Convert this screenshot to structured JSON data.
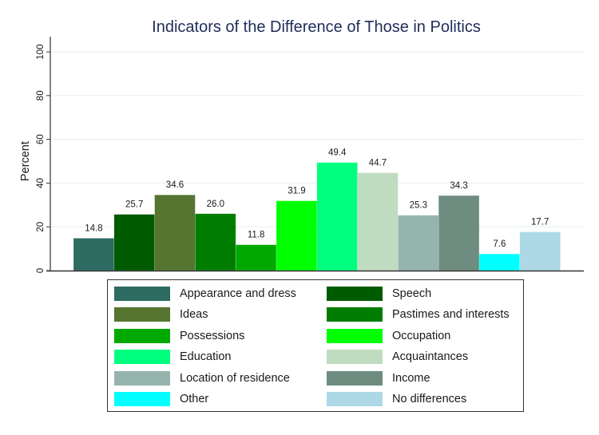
{
  "chart_data": {
    "type": "bar",
    "title": "Indicators of the Difference of Those in Politics",
    "xlabel": "",
    "ylabel": "Percent",
    "ylim": [
      0,
      100
    ],
    "yticks": [
      0,
      20,
      40,
      60,
      80,
      100
    ],
    "grid": true,
    "legend_position": "bottom",
    "series": [
      {
        "name": "Appearance and dress",
        "value": 14.8,
        "label": "14.8",
        "color": "#2e6b62"
      },
      {
        "name": "Speech",
        "value": 25.7,
        "label": "25.7",
        "color": "#005a00"
      },
      {
        "name": "Ideas",
        "value": 34.6,
        "label": "34.6",
        "color": "#557530"
      },
      {
        "name": "Pastimes and interests",
        "value": 26.0,
        "label": "26.0",
        "color": "#007d00"
      },
      {
        "name": "Possessions",
        "value": 11.8,
        "label": "11.8",
        "color": "#00a800"
      },
      {
        "name": "Occupation",
        "value": 31.9,
        "label": "31.9",
        "color": "#00ff00"
      },
      {
        "name": "Education",
        "value": 49.4,
        "label": "49.4",
        "color": "#00ff7f"
      },
      {
        "name": "Acquaintances",
        "value": 44.7,
        "label": "44.7",
        "color": "#c0dcc0"
      },
      {
        "name": "Location of residence",
        "value": 25.3,
        "label": "25.3",
        "color": "#96b4ae"
      },
      {
        "name": "Income",
        "value": 34.3,
        "label": "34.3",
        "color": "#6e8c80"
      },
      {
        "name": "Other",
        "value": 7.6,
        "label": "7.6",
        "color": "#00ffff"
      },
      {
        "name": "No differences",
        "value": 17.7,
        "label": "17.7",
        "color": "#add8e6"
      }
    ]
  },
  "colors": {
    "title": "#1e2d5a",
    "axis": "#333333",
    "grid": "#eaf2f3",
    "text": "#1a1a1a"
  }
}
